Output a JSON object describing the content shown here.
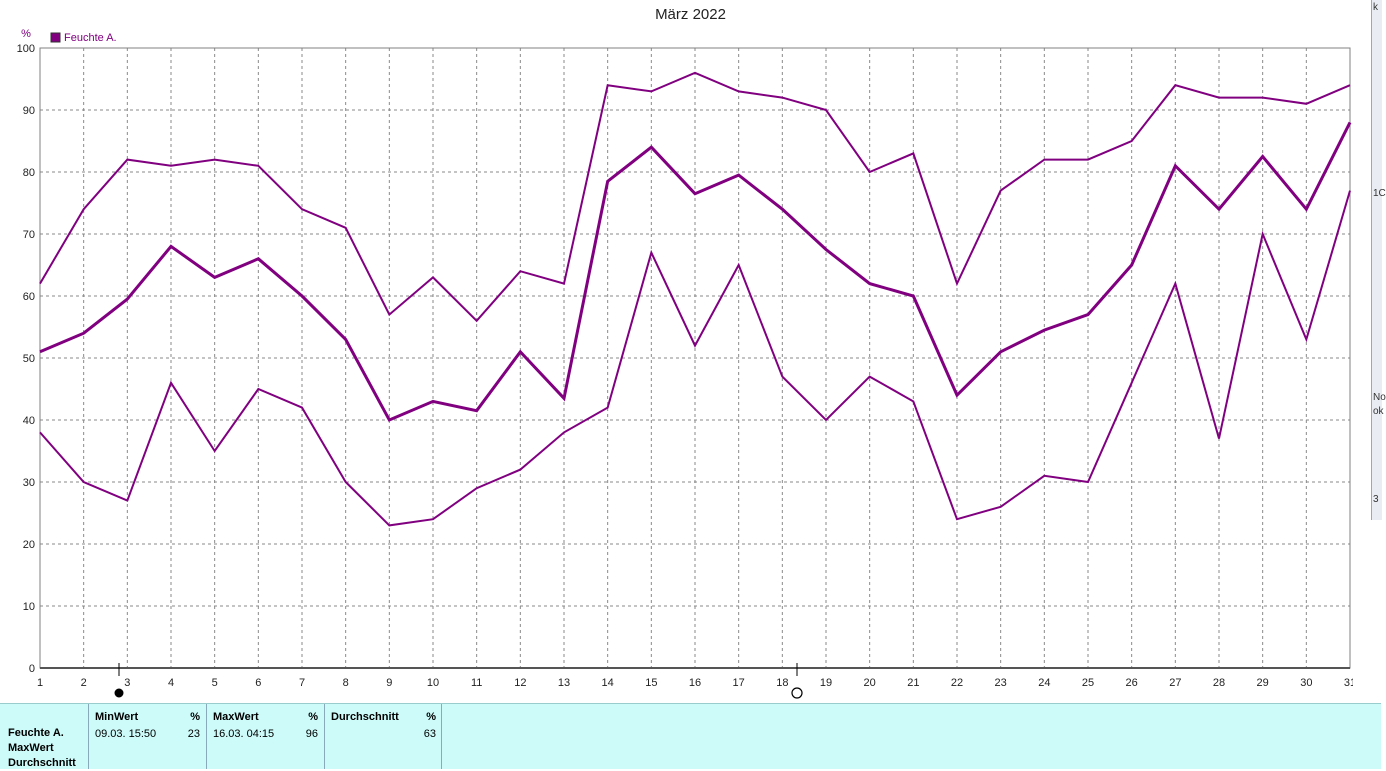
{
  "chart_data": {
    "type": "line",
    "title": "März 2022",
    "ylabel": "%",
    "ylim": [
      0,
      100
    ],
    "yticks": [
      0,
      10,
      20,
      30,
      40,
      50,
      60,
      70,
      80,
      90,
      100
    ],
    "x": [
      1,
      2,
      3,
      4,
      5,
      6,
      7,
      8,
      9,
      10,
      11,
      12,
      13,
      14,
      15,
      16,
      17,
      18,
      19,
      20,
      21,
      22,
      23,
      24,
      25,
      26,
      27,
      28,
      29,
      30,
      31
    ],
    "xlim": [
      1,
      31
    ],
    "grid": true,
    "legend": "top-left",
    "legend_entry": "Feuchte A.",
    "series": [
      {
        "role": "max",
        "values": [
          62,
          74,
          82,
          81,
          82,
          81,
          74,
          71,
          57,
          63,
          56,
          64,
          62,
          94,
          93,
          96,
          93,
          92,
          90,
          80,
          83,
          62,
          77,
          82,
          82,
          85,
          94,
          92,
          92,
          91,
          94
        ]
      },
      {
        "role": "avg",
        "values": [
          51,
          54,
          59.5,
          68,
          63,
          66,
          60,
          53,
          40,
          43,
          41.5,
          51,
          43.5,
          78.5,
          84,
          76.5,
          79.5,
          74,
          67.5,
          62,
          60,
          44,
          51,
          54.5,
          57,
          65,
          81,
          74,
          82.5,
          74,
          88
        ]
      },
      {
        "role": "min",
        "values": [
          38,
          30,
          27,
          46,
          35,
          45,
          42,
          30,
          23,
          24,
          29,
          32,
          38,
          42,
          67,
          52,
          65,
          47,
          40,
          47,
          43,
          24,
          26,
          31,
          30,
          46,
          62,
          37,
          70,
          53,
          77
        ]
      }
    ],
    "color": "#800080"
  },
  "panel": {
    "row_labels": [
      "Feuchte A.",
      "MaxWert",
      "Durchschnitt"
    ],
    "min": {
      "header": "MinWert",
      "unit": "%",
      "date": "09.03.  15:50",
      "value": "23"
    },
    "max": {
      "header": "MaxWert",
      "unit": "%",
      "date": "16.03.  04:15",
      "value": "96"
    },
    "avg": {
      "header": "Durchschnitt",
      "unit": "%",
      "value": "63"
    }
  },
  "right_strip": {
    "bits": [
      "k",
      "1C",
      "No",
      "ok",
      "3"
    ]
  }
}
